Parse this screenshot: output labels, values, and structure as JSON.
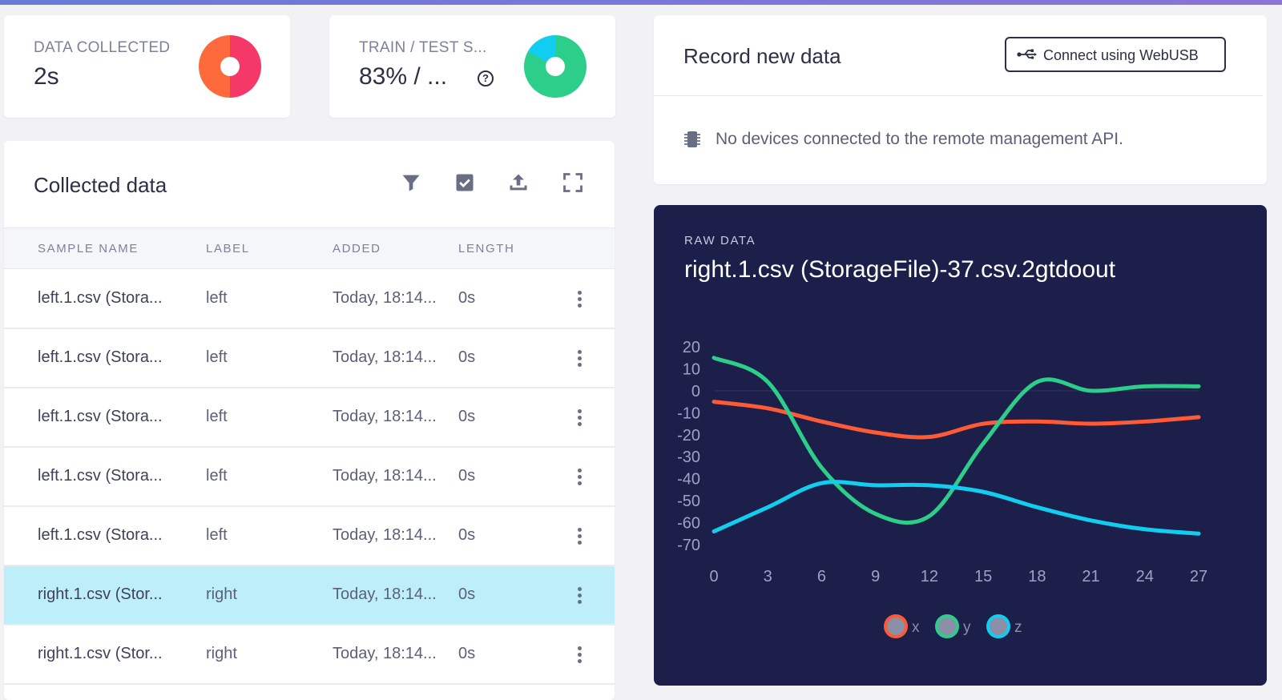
{
  "stats": {
    "data_collected": {
      "label": "DATA COLLECTED",
      "value": "2s",
      "color_a": "#ff6a3d",
      "color_b": "#f43867"
    },
    "train_test": {
      "label": "TRAIN / TEST S...",
      "value": "83% / ...",
      "help_glyph": "?",
      "train_pct": 83,
      "color_train": "#2dce89",
      "color_test": "#11cdef"
    }
  },
  "collected": {
    "title": "Collected data",
    "tools": [
      "filter-icon",
      "select-all-icon",
      "upload-icon",
      "fullscreen-icon"
    ],
    "columns": [
      "SAMPLE NAME",
      "LABEL",
      "ADDED",
      "LENGTH"
    ],
    "rows": [
      {
        "name": "left.1.csv (Stora...",
        "label": "left",
        "added": "Today, 18:14...",
        "length": "0s",
        "selected": false
      },
      {
        "name": "left.1.csv (Stora...",
        "label": "left",
        "added": "Today, 18:14...",
        "length": "0s",
        "selected": false
      },
      {
        "name": "left.1.csv (Stora...",
        "label": "left",
        "added": "Today, 18:14...",
        "length": "0s",
        "selected": false
      },
      {
        "name": "left.1.csv (Stora...",
        "label": "left",
        "added": "Today, 18:14...",
        "length": "0s",
        "selected": false
      },
      {
        "name": "left.1.csv (Stora...",
        "label": "left",
        "added": "Today, 18:14...",
        "length": "0s",
        "selected": false
      },
      {
        "name": "right.1.csv (Stor...",
        "label": "right",
        "added": "Today, 18:14...",
        "length": "0s",
        "selected": true
      },
      {
        "name": "right.1.csv (Stor...",
        "label": "right",
        "added": "Today, 18:14...",
        "length": "0s",
        "selected": false
      }
    ]
  },
  "record": {
    "title": "Record new data",
    "connect_label": "Connect using WebUSB",
    "no_devices": "No devices connected to the remote management API."
  },
  "raw": {
    "caption": "RAW DATA",
    "title": "right.1.csv (StorageFile)-37.csv.2gtdoout"
  },
  "chart_data": {
    "type": "line",
    "title": "right.1.csv (StorageFile)-37.csv.2gtdoout",
    "x": [
      0,
      3,
      6,
      9,
      12,
      15,
      18,
      21,
      24,
      27
    ],
    "x_ticks": [
      0,
      3,
      6,
      9,
      12,
      15,
      18,
      21,
      24,
      27
    ],
    "y_ticks": [
      20,
      10,
      0,
      -10,
      -20,
      -30,
      -40,
      -50,
      -60,
      -70
    ],
    "ylim": [
      -70,
      20
    ],
    "xlim": [
      0,
      27
    ],
    "series": [
      {
        "name": "x",
        "color": "#ff5a36",
        "values": [
          -5,
          -8,
          -14,
          -19,
          -21,
          -15,
          -14,
          -15,
          -14,
          -12
        ]
      },
      {
        "name": "y",
        "color": "#2dce89",
        "values": [
          15,
          4,
          -35,
          -56,
          -57,
          -24,
          4,
          0,
          2,
          2
        ]
      },
      {
        "name": "z",
        "color": "#11cdef",
        "values": [
          -64,
          -53,
          -42,
          -43,
          -43,
          -46,
          -53,
          -59,
          -63,
          -65
        ]
      }
    ],
    "legend": "bottom-center"
  }
}
